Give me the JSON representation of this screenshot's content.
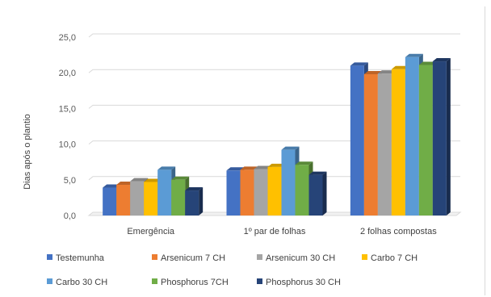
{
  "chart_data": {
    "type": "bar",
    "ylabel": "Dias após o plantio",
    "ylim": [
      0,
      25
    ],
    "ytick_step": 5,
    "ytick_labels": [
      "0,0",
      "5,0",
      "10,0",
      "15,0",
      "20,0",
      "25,0"
    ],
    "grid": true,
    "legend_position": "bottom",
    "categories": [
      "Emergência",
      "1º par de folhas",
      "2 folhas compostas"
    ],
    "series": [
      {
        "name": "Testemunha",
        "color": "#4472C4",
        "values": [
          3.9,
          6.3,
          21.0
        ]
      },
      {
        "name": "Arsenicum 7 CH",
        "color": "#ED7D31",
        "values": [
          4.3,
          6.4,
          19.8
        ]
      },
      {
        "name": "Arsenicum 30 CH",
        "color": "#A5A5A5",
        "values": [
          4.8,
          6.5,
          19.9
        ]
      },
      {
        "name": "Carbo 7 CH",
        "color": "#FFC000",
        "values": [
          4.7,
          6.8,
          20.5
        ]
      },
      {
        "name": "Carbo 30 CH",
        "color": "#5B9BD5",
        "values": [
          6.4,
          9.2,
          22.2
        ]
      },
      {
        "name": "Phosphorus 7CH",
        "color": "#70AD47",
        "values": [
          5.0,
          7.1,
          21.1
        ]
      },
      {
        "name": "Phosphorus 30 CH",
        "color": "#264478",
        "values": [
          3.5,
          5.7,
          21.6
        ]
      }
    ]
  }
}
